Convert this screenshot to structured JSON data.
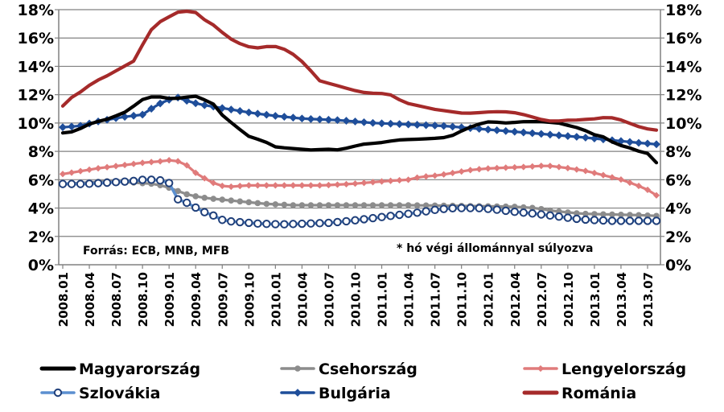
{
  "chart_data": {
    "type": "line",
    "title": "",
    "xlabel": "",
    "ylabel": "",
    "ylim": [
      0,
      18
    ],
    "y_ticks": [
      "0%",
      "2%",
      "4%",
      "6%",
      "8%",
      "10%",
      "12%",
      "14%",
      "16%",
      "18%"
    ],
    "x_tick_labels": [
      "2008.01",
      "2008.04",
      "2008.07",
      "2008.10",
      "2009.01",
      "2009.04",
      "2009.07",
      "2009.10",
      "2010.01",
      "2010.04",
      "2010.07",
      "2010.10",
      "2011.01",
      "2011.04",
      "2011.07",
      "2011.10",
      "2012.01",
      "2012.04",
      "2012.07",
      "2012.10",
      "2013.01",
      "2013.04",
      "2013.07"
    ],
    "annotations": {
      "source": "Forrás: ECB, MNB, MFB",
      "note": "* hó végi állománnyal súlyozva"
    },
    "series": [
      {
        "name": "Magyarország",
        "color": "#000000",
        "marker": "none",
        "anchors": [
          [
            0,
            9.3
          ],
          [
            2,
            9.4
          ],
          [
            5,
            10.0
          ],
          [
            8,
            10.3
          ],
          [
            11,
            10.8
          ],
          [
            14,
            11.7
          ],
          [
            16,
            11.9
          ],
          [
            19,
            11.7
          ],
          [
            21,
            11.8
          ],
          [
            23,
            11.9
          ],
          [
            26,
            11.4
          ],
          [
            28,
            10.4
          ],
          [
            30,
            9.8
          ],
          [
            32,
            9.1
          ],
          [
            35,
            8.7
          ],
          [
            37,
            8.3
          ],
          [
            40,
            8.2
          ],
          [
            43,
            8.1
          ],
          [
            46,
            8.15
          ],
          [
            48,
            8.1
          ],
          [
            50,
            8.3
          ],
          [
            52,
            8.5
          ],
          [
            55,
            8.6
          ],
          [
            58,
            8.8
          ],
          [
            61,
            8.85
          ],
          [
            64,
            8.9
          ],
          [
            67,
            9.0
          ],
          [
            70,
            9.6
          ],
          [
            72,
            9.9
          ],
          [
            74,
            10.1
          ],
          [
            77,
            10.0
          ],
          [
            80,
            10.1
          ],
          [
            83,
            10.1
          ],
          [
            86,
            10.0
          ],
          [
            88,
            9.8
          ],
          [
            90,
            9.6
          ],
          [
            92,
            9.2
          ],
          [
            94,
            9.0
          ],
          [
            96,
            8.5
          ],
          [
            98,
            8.3
          ],
          [
            100,
            8.0
          ],
          [
            102,
            7.8
          ],
          [
            103,
            7.2
          ]
        ]
      },
      {
        "name": "Csehország",
        "color": "#8c8c8c",
        "marker": "circle-grey",
        "anchors": [
          [
            0,
            5.7
          ],
          [
            4,
            5.8
          ],
          [
            8,
            5.9
          ],
          [
            12,
            5.8
          ],
          [
            16,
            5.7
          ],
          [
            18,
            5.5
          ],
          [
            20,
            5.2
          ],
          [
            22,
            4.9
          ],
          [
            25,
            4.7
          ],
          [
            30,
            4.5
          ],
          [
            35,
            4.3
          ],
          [
            40,
            4.2
          ],
          [
            50,
            4.2
          ],
          [
            60,
            4.2
          ],
          [
            70,
            4.15
          ],
          [
            78,
            4.1
          ],
          [
            82,
            4.0
          ],
          [
            85,
            3.8
          ],
          [
            90,
            3.6
          ],
          [
            95,
            3.55
          ],
          [
            100,
            3.5
          ],
          [
            103,
            3.45
          ]
        ]
      },
      {
        "name": "Lengyelország",
        "color": "#e07b7b",
        "marker": "diamond-pink",
        "anchors": [
          [
            0,
            6.4
          ],
          [
            3,
            6.6
          ],
          [
            6,
            6.8
          ],
          [
            10,
            7.0
          ],
          [
            14,
            7.2
          ],
          [
            17,
            7.3
          ],
          [
            19,
            7.4
          ],
          [
            21,
            7.2
          ],
          [
            23,
            6.5
          ],
          [
            25,
            6.0
          ],
          [
            27,
            5.6
          ],
          [
            29,
            5.5
          ],
          [
            32,
            5.6
          ],
          [
            36,
            5.6
          ],
          [
            40,
            5.6
          ],
          [
            45,
            5.6
          ],
          [
            50,
            5.7
          ],
          [
            53,
            5.8
          ],
          [
            56,
            5.9
          ],
          [
            60,
            6.0
          ],
          [
            62,
            6.2
          ],
          [
            65,
            6.3
          ],
          [
            68,
            6.5
          ],
          [
            71,
            6.7
          ],
          [
            74,
            6.8
          ],
          [
            77,
            6.85
          ],
          [
            80,
            6.9
          ],
          [
            84,
            7.0
          ],
          [
            88,
            6.8
          ],
          [
            91,
            6.6
          ],
          [
            94,
            6.3
          ],
          [
            97,
            6.0
          ],
          [
            99,
            5.7
          ],
          [
            101,
            5.4
          ],
          [
            103,
            4.9
          ]
        ]
      },
      {
        "name": "Szlovákia",
        "color": "#5b8fd0",
        "marker": "circle-white",
        "anchors": [
          [
            0,
            5.7
          ],
          [
            4,
            5.7
          ],
          [
            8,
            5.8
          ],
          [
            12,
            5.9
          ],
          [
            14,
            6.0
          ],
          [
            16,
            6.0
          ],
          [
            18,
            5.9
          ],
          [
            19,
            5.6
          ],
          [
            20,
            4.6
          ],
          [
            22,
            4.3
          ],
          [
            24,
            3.8
          ],
          [
            26,
            3.5
          ],
          [
            28,
            3.1
          ],
          [
            31,
            3.0
          ],
          [
            34,
            2.9
          ],
          [
            38,
            2.85
          ],
          [
            42,
            2.9
          ],
          [
            46,
            2.95
          ],
          [
            50,
            3.1
          ],
          [
            54,
            3.3
          ],
          [
            58,
            3.5
          ],
          [
            62,
            3.7
          ],
          [
            65,
            3.9
          ],
          [
            68,
            4.0
          ],
          [
            72,
            4.0
          ],
          [
            75,
            3.9
          ],
          [
            78,
            3.75
          ],
          [
            82,
            3.6
          ],
          [
            86,
            3.4
          ],
          [
            90,
            3.2
          ],
          [
            95,
            3.1
          ],
          [
            100,
            3.1
          ],
          [
            103,
            3.1
          ]
        ]
      },
      {
        "name": "Bulgária",
        "color": "#1f4e9a",
        "marker": "diamond-blue",
        "anchors": [
          [
            0,
            9.7
          ],
          [
            3,
            9.8
          ],
          [
            6,
            10.1
          ],
          [
            10,
            10.4
          ],
          [
            14,
            10.6
          ],
          [
            16,
            11.2
          ],
          [
            18,
            11.6
          ],
          [
            20,
            11.8
          ],
          [
            22,
            11.5
          ],
          [
            24,
            11.3
          ],
          [
            27,
            11.1
          ],
          [
            30,
            10.9
          ],
          [
            33,
            10.7
          ],
          [
            37,
            10.5
          ],
          [
            42,
            10.3
          ],
          [
            48,
            10.2
          ],
          [
            54,
            10.0
          ],
          [
            60,
            9.9
          ],
          [
            66,
            9.8
          ],
          [
            72,
            9.6
          ],
          [
            78,
            9.4
          ],
          [
            84,
            9.2
          ],
          [
            90,
            9.0
          ],
          [
            95,
            8.8
          ],
          [
            100,
            8.6
          ],
          [
            103,
            8.5
          ]
        ]
      },
      {
        "name": "Románia",
        "color": "#a52a2a",
        "marker": "none",
        "anchors": [
          [
            0,
            11.2
          ],
          [
            2,
            11.9
          ],
          [
            4,
            12.3
          ],
          [
            6,
            12.9
          ],
          [
            8,
            13.2
          ],
          [
            10,
            13.6
          ],
          [
            12,
            14.0
          ],
          [
            14,
            14.4
          ],
          [
            16,
            15.8
          ],
          [
            18,
            17.0
          ],
          [
            20,
            17.3
          ],
          [
            22,
            17.8
          ],
          [
            24,
            17.9
          ],
          [
            26,
            17.8
          ],
          [
            28,
            17.2
          ],
          [
            30,
            16.8
          ],
          [
            32,
            16.1
          ],
          [
            34,
            15.7
          ],
          [
            36,
            15.4
          ],
          [
            38,
            15.3
          ],
          [
            40,
            15.4
          ],
          [
            42,
            15.4
          ],
          [
            44,
            15.1
          ],
          [
            46,
            14.6
          ],
          [
            48,
            13.9
          ],
          [
            50,
            13.0
          ],
          [
            52,
            12.8
          ],
          [
            54,
            12.6
          ],
          [
            56,
            12.4
          ],
          [
            58,
            12.2
          ],
          [
            60,
            12.1
          ],
          [
            62,
            12.1
          ],
          [
            64,
            12.0
          ],
          [
            66,
            11.6
          ],
          [
            68,
            11.3
          ],
          [
            70,
            11.2
          ],
          [
            72,
            11.0
          ],
          [
            74,
            10.9
          ],
          [
            76,
            10.8
          ],
          [
            78,
            10.7
          ],
          [
            80,
            10.7
          ],
          [
            82,
            10.75
          ],
          [
            84,
            10.8
          ],
          [
            86,
            10.8
          ],
          [
            88,
            10.75
          ],
          [
            90,
            10.6
          ],
          [
            92,
            10.4
          ],
          [
            94,
            10.2
          ],
          [
            96,
            10.1
          ],
          [
            98,
            10.2
          ],
          [
            100,
            10.2
          ],
          [
            102,
            10.25
          ],
          [
            104,
            10.3
          ],
          [
            106,
            10.4
          ],
          [
            108,
            10.35
          ],
          [
            110,
            10.1
          ],
          [
            112,
            9.8
          ],
          [
            114,
            9.6
          ],
          [
            116,
            9.5
          ]
        ]
      }
    ]
  }
}
